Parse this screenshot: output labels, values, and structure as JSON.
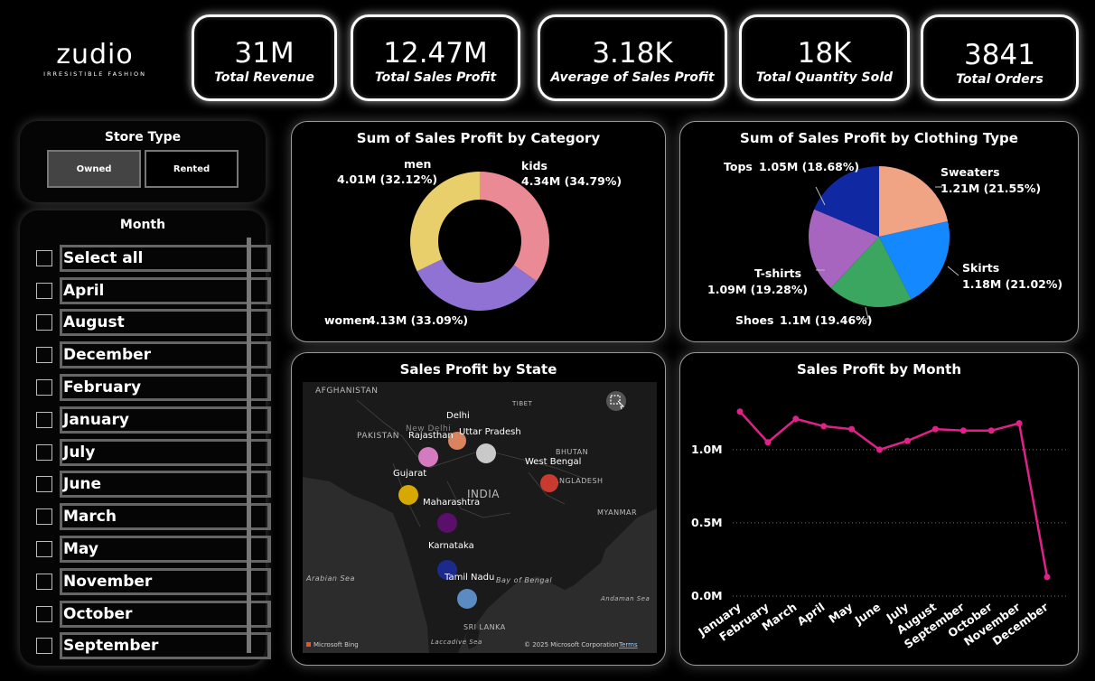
{
  "logo": {
    "name": "zudio",
    "tagline": "IRRESISTIBLE FASHION"
  },
  "kpis": [
    {
      "value": "31M",
      "label": "Total Revenue"
    },
    {
      "value": "12.47M",
      "label": "Total Sales Profit"
    },
    {
      "value": "3.18K",
      "label": "Average of Sales Profit"
    },
    {
      "value": "18K",
      "label": "Total Quantity Sold"
    },
    {
      "value": "3841",
      "label": "Total Orders"
    }
  ],
  "store_type": {
    "title": "Store Type",
    "options": [
      "Owned",
      "Rented"
    ],
    "selected": "Owned"
  },
  "month_slicer": {
    "title": "Month",
    "items": [
      "Select all",
      "April",
      "August",
      "December",
      "February",
      "January",
      "July",
      "June",
      "March",
      "May",
      "November",
      "October",
      "September"
    ]
  },
  "map": {
    "title": "Sales Profit by State",
    "states": [
      "Delhi",
      "Uttar Pradesh",
      "Rajasthan",
      "West Bengal",
      "Gujarat",
      "Maharashtra",
      "Karnataka",
      "Tamil Nadu"
    ],
    "place_labels": [
      "AFGHANISTAN",
      "PAKISTAN",
      "TIBET",
      "BHUTAN",
      "BANGLADESH",
      "INDIA",
      "MYANMAR",
      "Arabian Sea",
      "Bay of Bengal",
      "Andaman Sea",
      "SRI LANKA",
      "Laccadive Sea",
      "New Delhi"
    ],
    "attribution_left": "Microsoft Bing",
    "attribution_right": "© 2025 Microsoft Corporation",
    "terms": "Terms",
    "colors": [
      "#d9835f",
      "#c9c9c9",
      "#d47ac0",
      "#c93a2f",
      "#d6a800",
      "#5a0f6b",
      "#1b2a8c",
      "#5a8cc2"
    ]
  },
  "chart_data": [
    {
      "type": "pie",
      "variant": "donut",
      "title": "Sum of Sales Profit by Category",
      "labels": [
        "kids",
        "women",
        "men"
      ],
      "values": [
        4.34,
        4.13,
        4.01
      ],
      "value_labels": [
        "4.34M (34.79%)",
        "4.13M (33.09%)",
        "4.01M (32.12%)"
      ],
      "colors": [
        "#e98a95",
        "#8f72d4",
        "#e8cf6b"
      ]
    },
    {
      "type": "pie",
      "title": "Sum of Sales Profit by Clothing Type",
      "labels": [
        "Sweaters",
        "Skirts",
        "Shoes",
        "T-shirts",
        "Tops"
      ],
      "values": [
        1.21,
        1.18,
        1.1,
        1.09,
        1.05
      ],
      "value_labels": [
        "1.21M (21.55%)",
        "1.18M (21.02%)",
        "1.1M (19.46%)",
        "1.09M (19.28%)",
        "1.05M (18.68%)"
      ],
      "colors": [
        "#f0a484",
        "#1488ff",
        "#3aa660",
        "#a865bf",
        "#1128a3"
      ]
    },
    {
      "type": "line",
      "title": "Sales Profit by Month",
      "categories": [
        "January",
        "February",
        "March",
        "April",
        "May",
        "June",
        "July",
        "August",
        "September",
        "October",
        "November",
        "December"
      ],
      "values": [
        1.26,
        1.05,
        1.21,
        1.16,
        1.14,
        1.0,
        1.06,
        1.14,
        1.13,
        1.13,
        1.18,
        0.13
      ],
      "ytick_values": [
        0.0,
        0.5,
        1.0
      ],
      "ytick_labels": [
        "0.0M",
        "0.5M",
        "1.0M"
      ],
      "ylim": [
        0,
        1.4
      ],
      "grid": true,
      "color": "#e0218a"
    }
  ]
}
